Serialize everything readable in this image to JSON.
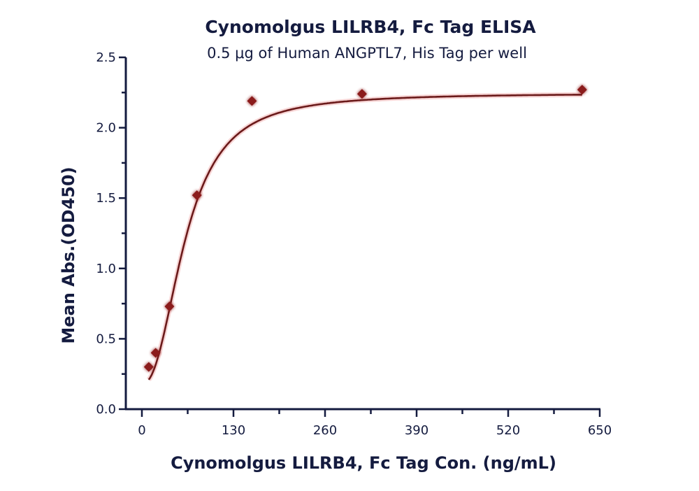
{
  "chart_data": {
    "type": "scatter",
    "title": "Cynomolgus LILRB4, Fc Tag ELISA",
    "subtitle": "0.5 μg of Human ANGPTL7, His Tag per well",
    "xlabel": "Cynomolgus LILRB4, Fc Tag Con. (ng/mL)",
    "ylabel": "Mean Abs.(OD450)",
    "xlim": [
      0,
      650
    ],
    "ylim": [
      0,
      2.5
    ],
    "x_ticks": [
      0,
      130,
      260,
      390,
      520,
      650
    ],
    "x_tick_labels": [
      "0",
      "130",
      "260",
      "390",
      "520",
      "650"
    ],
    "y_ticks": [
      0.0,
      0.5,
      1.0,
      1.5,
      2.0,
      2.5
    ],
    "y_tick_labels": [
      "0.0",
      "0.5",
      "1.0",
      "1.5",
      "2.0",
      "2.5"
    ],
    "grid": false,
    "legend": null,
    "series": [
      {
        "name": "Cynomolgus LILRB4, Fc Tag",
        "marker": "diamond",
        "color": "#8b1a1a",
        "fit_line_color": "#6b1a1a",
        "fit": "4-parameter logistic",
        "x": [
          9.77,
          19.5,
          39.1,
          78.1,
          156.25,
          312.5,
          625
        ],
        "y": [
          0.3,
          0.4,
          0.73,
          1.52,
          2.19,
          2.24,
          2.27
        ]
      }
    ]
  },
  "colors": {
    "axis": "#141b3f",
    "text": "#141b3f",
    "marker": "#8b1a1a",
    "curve": "#6b1a1a"
  }
}
